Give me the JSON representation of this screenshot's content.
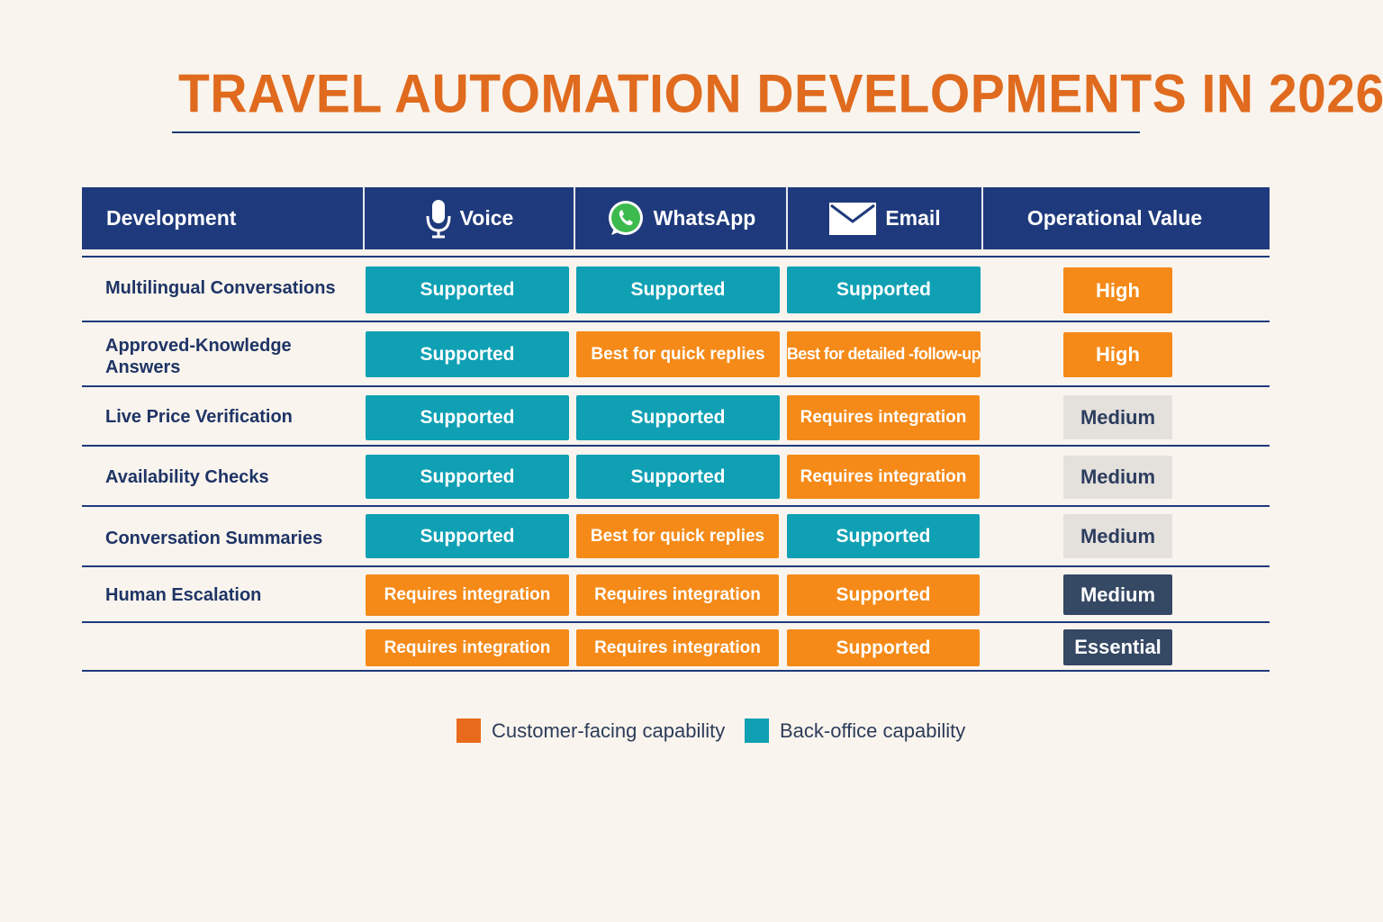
{
  "title": "TRAVEL AUTOMATION DEVELOPMENTS IN 2026",
  "colors": {
    "header_bg": "#1f3a7c",
    "title": "#e06a1e",
    "teal": "#0fa0b4",
    "orange": "#f58a18",
    "medium_badge": "#e4e0dc",
    "dark_badge": "#354864",
    "background": "#f9f4ed"
  },
  "header": {
    "development": "Development",
    "voice": "Voice",
    "whatsapp": "WhatsApp",
    "email": "Email",
    "value": "Operational Value",
    "icons": [
      "microphone-icon",
      "whatsapp-icon",
      "envelope-icon"
    ]
  },
  "rows": [
    {
      "label": "Multilingual Conversations",
      "voice": {
        "text": "Supported",
        "color": "teal"
      },
      "whatsapp": {
        "text": "Supported",
        "color": "teal"
      },
      "email": {
        "text": "Supported",
        "color": "teal"
      },
      "value": {
        "text": "High",
        "style": "high"
      }
    },
    {
      "label": "Approved-Knowledge Answers",
      "voice": {
        "text": "Supported",
        "color": "teal"
      },
      "whatsapp": {
        "text": "Best for quick replies",
        "color": "orange"
      },
      "email": {
        "text": "Best for detailed -follow-up",
        "color": "orange"
      },
      "value": {
        "text": "High",
        "style": "high"
      }
    },
    {
      "label": "Live Price Verification",
      "voice": {
        "text": "Supported",
        "color": "teal"
      },
      "whatsapp": {
        "text": "Supported",
        "color": "teal"
      },
      "email": {
        "text": "Requires integration",
        "color": "orange"
      },
      "value": {
        "text": "Medium",
        "style": "medium"
      }
    },
    {
      "label": "Availability Checks",
      "voice": {
        "text": "Supported",
        "color": "teal"
      },
      "whatsapp": {
        "text": "Supported",
        "color": "teal"
      },
      "email": {
        "text": "Requires integration",
        "color": "orange"
      },
      "value": {
        "text": "Medium",
        "style": "medium"
      }
    },
    {
      "label": "Conversation Summaries",
      "voice": {
        "text": "Supported",
        "color": "teal"
      },
      "whatsapp": {
        "text": "Best for quick replies",
        "color": "orange"
      },
      "email": {
        "text": "Supported",
        "color": "teal"
      },
      "value": {
        "text": "Medium",
        "style": "medium"
      }
    },
    {
      "label": "Human Escalation",
      "voice": {
        "text": "Requires integration",
        "color": "orange"
      },
      "whatsapp": {
        "text": "Requires integration",
        "color": "orange"
      },
      "email": {
        "text": "Supported",
        "color": "orange"
      },
      "value": {
        "text": "Medium",
        "style": "dark"
      }
    },
    {
      "label": "",
      "voice": {
        "text": "Requires integration",
        "color": "orange"
      },
      "whatsapp": {
        "text": "Requires integration",
        "color": "orange"
      },
      "email": {
        "text": "Supported",
        "color": "orange"
      },
      "value": {
        "text": "Essential",
        "style": "dark"
      }
    }
  ],
  "legend": {
    "customer": "Customer-facing capability",
    "backoffice": "Back-office capability"
  }
}
